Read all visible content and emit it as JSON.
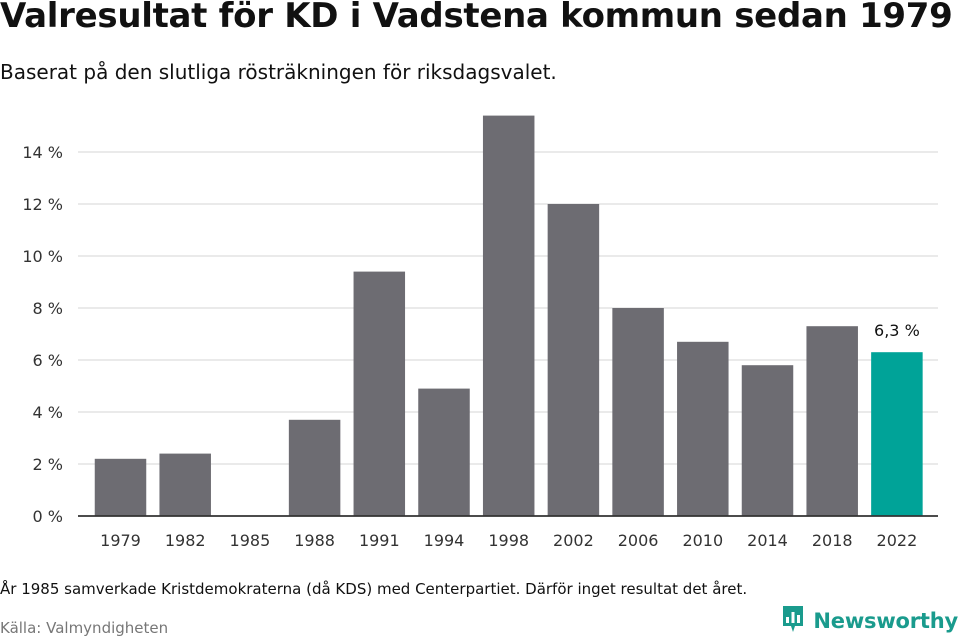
{
  "header": {
    "title": "Valresultat för KD i Vadstena kommun sedan 1979",
    "subtitle": "Baserat på den slutliga rösträkningen för riksdagsvalet."
  },
  "footer": {
    "note": "År 1985 samverkade Kristdemokraterna (då KDS) med Centerpartiet. Därför inget resultat det året.",
    "source": "Källa: Valmyndigheten",
    "brand": "Newsworthy",
    "brand_icon": "newsworthy-logo-icon"
  },
  "colors": {
    "bar": "#6d6c72",
    "highlight": "#00a398",
    "grid": "#dddddd",
    "axis": "#333333",
    "brand": "#1a9b8d"
  },
  "chart_data": {
    "type": "bar",
    "categories": [
      "1979",
      "1982",
      "1985",
      "1988",
      "1991",
      "1994",
      "1998",
      "2002",
      "2006",
      "2010",
      "2014",
      "2018",
      "2022"
    ],
    "values": [
      2.2,
      2.4,
      null,
      3.7,
      9.4,
      4.9,
      15.4,
      12.0,
      8.0,
      6.7,
      5.8,
      7.3,
      6.3
    ],
    "highlight_index": 12,
    "highlight_label": "6,3 %",
    "yticks": [
      "0 %",
      "2 %",
      "4 %",
      "6 %",
      "8 %",
      "10 %",
      "12 %",
      "14 %"
    ],
    "ytick_values": [
      0,
      2,
      4,
      6,
      8,
      10,
      12,
      14
    ],
    "ylim": [
      0,
      16
    ],
    "grid": true,
    "legend": "none"
  }
}
